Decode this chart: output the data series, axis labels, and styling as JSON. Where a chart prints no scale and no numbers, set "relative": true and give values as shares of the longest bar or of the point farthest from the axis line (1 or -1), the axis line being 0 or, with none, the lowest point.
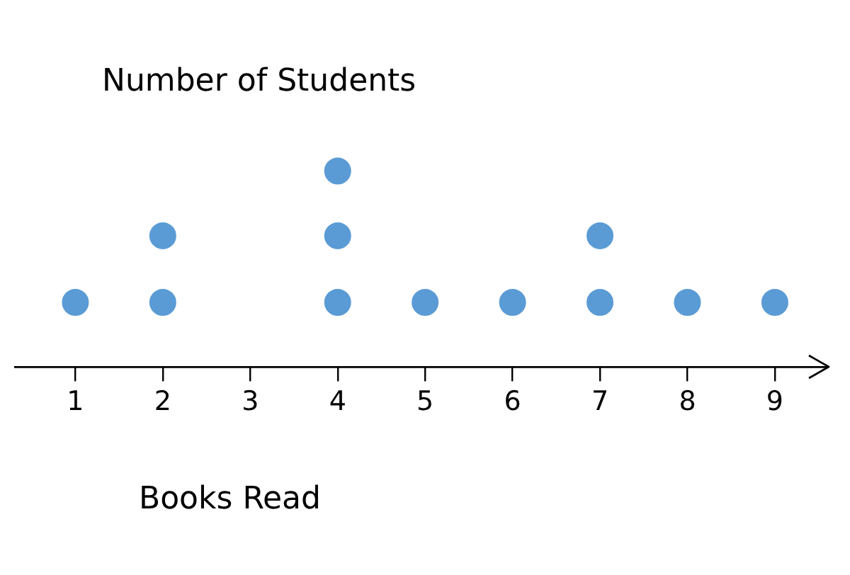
{
  "chart_data": {
    "type": "scatter",
    "title": "Number of Students",
    "xlabel": "Books Read",
    "relative": true,
    "xlim": [
      0.3,
      9.6
    ],
    "xticks": [
      1,
      2,
      3,
      4,
      5,
      6,
      7,
      8,
      9
    ],
    "grid": false,
    "legend": false,
    "marker": "circle",
    "series": [
      {
        "color": "#5b9bd5",
        "x": [
          1,
          2,
          2,
          4,
          4,
          4,
          5,
          6,
          7,
          7,
          8,
          9
        ],
        "values": [
          0.33,
          0.33,
          0.67,
          0.33,
          0.67,
          1,
          0.33,
          0.33,
          0.33,
          0.67,
          0.33,
          0.33
        ]
      }
    ]
  }
}
